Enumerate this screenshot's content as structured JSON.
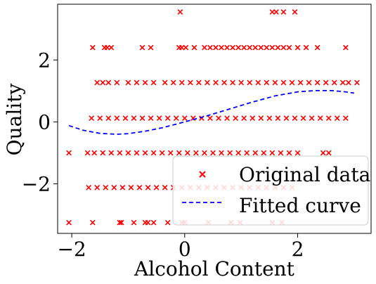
{
  "chart_data": {
    "type": "scatter",
    "xlabel": "Alcohol Content",
    "ylabel": "Quality",
    "xlim": [
      -2.25,
      3.3
    ],
    "ylim": [
      -3.6,
      3.8
    ],
    "xticks": [
      -2,
      0,
      2
    ],
    "yticks": [
      -2,
      0,
      2
    ],
    "xtick_labels": [
      "−2",
      "0",
      "2"
    ],
    "ytick_labels": [
      "−2",
      "0",
      "2"
    ],
    "grid": false,
    "legend_position": "lower-right",
    "series": [
      {
        "name": "Original data",
        "kind": "scatter",
        "marker": "x",
        "color": "#ff0000",
        "points": [
          [
            -0.08,
            3.55
          ],
          [
            1.55,
            3.55
          ],
          [
            1.62,
            3.55
          ],
          [
            1.75,
            3.55
          ],
          [
            1.95,
            3.55
          ],
          [
            -1.63,
            2.4
          ],
          [
            -1.42,
            2.4
          ],
          [
            -1.37,
            2.4
          ],
          [
            -1.3,
            2.4
          ],
          [
            -0.75,
            2.4
          ],
          [
            -0.6,
            2.4
          ],
          [
            -0.1,
            2.4
          ],
          [
            -0.05,
            2.4
          ],
          [
            0.02,
            2.4
          ],
          [
            0.17,
            2.4
          ],
          [
            0.35,
            2.4
          ],
          [
            0.45,
            2.4
          ],
          [
            0.55,
            2.4
          ],
          [
            0.65,
            2.4
          ],
          [
            0.75,
            2.4
          ],
          [
            0.85,
            2.4
          ],
          [
            0.95,
            2.4
          ],
          [
            1.05,
            2.4
          ],
          [
            1.15,
            2.4
          ],
          [
            1.25,
            2.4
          ],
          [
            1.35,
            2.4
          ],
          [
            1.45,
            2.4
          ],
          [
            1.55,
            2.4
          ],
          [
            1.65,
            2.4
          ],
          [
            1.75,
            2.4
          ],
          [
            1.85,
            2.4
          ],
          [
            2.0,
            2.4
          ],
          [
            2.15,
            2.4
          ],
          [
            2.35,
            2.4
          ],
          [
            2.85,
            2.4
          ],
          [
            -1.55,
            1.27
          ],
          [
            -1.45,
            1.27
          ],
          [
            -1.35,
            1.27
          ],
          [
            -1.2,
            1.27
          ],
          [
            -1.0,
            1.27
          ],
          [
            -0.85,
            1.27
          ],
          [
            -0.7,
            1.27
          ],
          [
            -0.55,
            1.27
          ],
          [
            -0.35,
            1.27
          ],
          [
            -0.2,
            1.27
          ],
          [
            -0.05,
            1.27
          ],
          [
            0.1,
            1.27
          ],
          [
            0.25,
            1.27
          ],
          [
            0.4,
            1.27
          ],
          [
            0.55,
            1.27
          ],
          [
            0.7,
            1.27
          ],
          [
            0.85,
            1.27
          ],
          [
            1.0,
            1.27
          ],
          [
            1.15,
            1.27
          ],
          [
            1.3,
            1.27
          ],
          [
            1.45,
            1.27
          ],
          [
            1.6,
            1.27
          ],
          [
            1.75,
            1.27
          ],
          [
            1.9,
            1.27
          ],
          [
            2.05,
            1.27
          ],
          [
            2.2,
            1.27
          ],
          [
            2.35,
            1.27
          ],
          [
            2.5,
            1.27
          ],
          [
            2.65,
            1.27
          ],
          [
            2.8,
            1.27
          ],
          [
            2.9,
            1.27
          ],
          [
            3.05,
            1.27
          ],
          [
            -1.65,
            0.12
          ],
          [
            -1.5,
            0.12
          ],
          [
            -1.35,
            0.12
          ],
          [
            -1.2,
            0.12
          ],
          [
            -1.05,
            0.12
          ],
          [
            -0.9,
            0.12
          ],
          [
            -0.75,
            0.12
          ],
          [
            -0.6,
            0.12
          ],
          [
            -0.45,
            0.12
          ],
          [
            -0.3,
            0.12
          ],
          [
            -0.15,
            0.12
          ],
          [
            0.0,
            0.12
          ],
          [
            0.15,
            0.12
          ],
          [
            0.3,
            0.12
          ],
          [
            0.45,
            0.12
          ],
          [
            0.6,
            0.12
          ],
          [
            0.75,
            0.12
          ],
          [
            0.9,
            0.12
          ],
          [
            1.05,
            0.12
          ],
          [
            1.2,
            0.12
          ],
          [
            1.35,
            0.12
          ],
          [
            1.5,
            0.12
          ],
          [
            1.65,
            0.12
          ],
          [
            1.8,
            0.12
          ],
          [
            1.95,
            0.12
          ],
          [
            2.1,
            0.12
          ],
          [
            2.25,
            0.12
          ],
          [
            2.4,
            0.12
          ],
          [
            2.55,
            0.12
          ],
          [
            2.7,
            0.12
          ],
          [
            2.85,
            0.12
          ],
          [
            -2.05,
            -1.0
          ],
          [
            -1.72,
            -1.0
          ],
          [
            -1.6,
            -1.0
          ],
          [
            -1.45,
            -1.0
          ],
          [
            -1.3,
            -1.0
          ],
          [
            -1.15,
            -1.0
          ],
          [
            -1.0,
            -1.0
          ],
          [
            -0.85,
            -1.0
          ],
          [
            -0.7,
            -1.0
          ],
          [
            -0.55,
            -1.0
          ],
          [
            -0.4,
            -1.0
          ],
          [
            -0.25,
            -1.0
          ],
          [
            -0.1,
            -1.0
          ],
          [
            0.05,
            -1.0
          ],
          [
            0.2,
            -1.0
          ],
          [
            0.35,
            -1.0
          ],
          [
            0.5,
            -1.0
          ],
          [
            0.65,
            -1.0
          ],
          [
            0.8,
            -1.0
          ],
          [
            0.95,
            -1.0
          ],
          [
            1.1,
            -1.0
          ],
          [
            1.25,
            -1.0
          ],
          [
            1.4,
            -1.0
          ],
          [
            1.55,
            -1.0
          ],
          [
            1.7,
            -1.0
          ],
          [
            1.85,
            -1.0
          ],
          [
            2.0,
            -1.0
          ],
          [
            2.45,
            -1.0
          ],
          [
            2.55,
            -1.0
          ],
          [
            -1.7,
            -2.12
          ],
          [
            -1.55,
            -2.12
          ],
          [
            -1.4,
            -2.12
          ],
          [
            -1.25,
            -2.12
          ],
          [
            -1.1,
            -2.12
          ],
          [
            -0.95,
            -2.12
          ],
          [
            -0.8,
            -2.12
          ],
          [
            -0.65,
            -2.12
          ],
          [
            -0.5,
            -2.12
          ],
          [
            -0.35,
            -2.12
          ],
          [
            -0.2,
            -2.12
          ],
          [
            -0.05,
            -2.12
          ],
          [
            0.1,
            -2.12
          ],
          [
            0.25,
            -2.12
          ],
          [
            0.4,
            -2.12
          ],
          [
            0.55,
            -2.12
          ],
          [
            0.7,
            -2.12
          ],
          [
            0.85,
            -2.12
          ],
          [
            1.0,
            -2.12
          ],
          [
            1.15,
            -2.12
          ],
          [
            1.3,
            -2.12
          ],
          [
            1.45,
            -2.12
          ],
          [
            1.6,
            -2.12
          ],
          [
            1.75,
            -2.12
          ],
          [
            1.9,
            -2.12
          ],
          [
            -2.05,
            -3.25
          ],
          [
            -1.63,
            -3.25
          ],
          [
            -1.15,
            -3.25
          ],
          [
            -1.12,
            -3.25
          ],
          [
            -0.9,
            -3.25
          ],
          [
            -0.7,
            -3.25
          ],
          [
            -0.65,
            -3.25
          ],
          [
            -0.55,
            -3.25
          ],
          [
            -0.3,
            -3.25
          ],
          [
            -0.05,
            -3.25
          ],
          [
            0.0,
            -3.25
          ],
          [
            0.42,
            -3.25
          ],
          [
            0.82,
            -3.25
          ],
          [
            0.98,
            -3.25
          ],
          [
            1.55,
            -3.25
          ],
          [
            1.72,
            -3.25
          ]
        ]
      },
      {
        "name": "Fitted curve",
        "kind": "line",
        "style": "dashed",
        "color": "#0000ff",
        "x": [
          -2.05,
          -1.8,
          -1.5,
          -1.2,
          -1.0,
          -0.7,
          -0.4,
          0.0,
          0.4,
          0.8,
          1.2,
          1.6,
          2.0,
          2.3,
          2.6,
          2.8,
          3.0
        ],
        "y": [
          -0.12,
          -0.27,
          -0.37,
          -0.4,
          -0.38,
          -0.3,
          -0.19,
          0.0,
          0.2,
          0.42,
          0.64,
          0.84,
          0.97,
          1.01,
          1.01,
          0.98,
          0.93
        ]
      }
    ]
  }
}
